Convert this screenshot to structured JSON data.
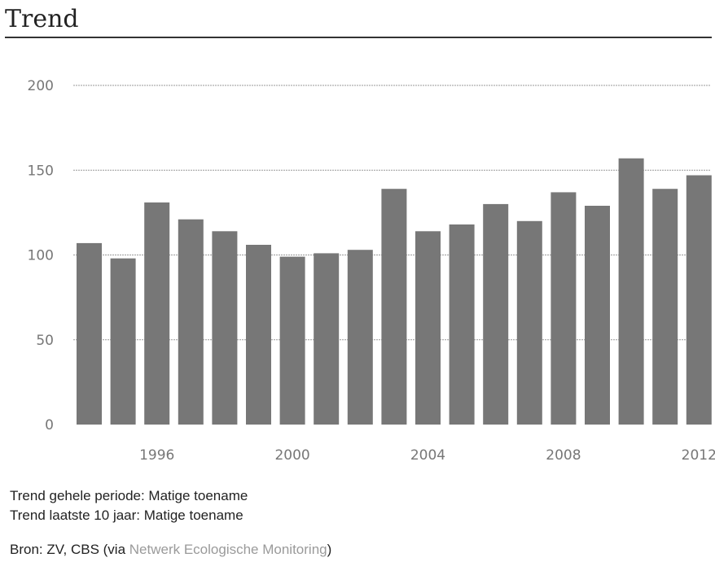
{
  "header": {
    "title": "Trend"
  },
  "notes": {
    "period": "Trend gehele periode: Matige toename",
    "last10": "Trend laatste 10 jaar: Matige toename"
  },
  "source": {
    "prefix": "Bron: ZV, CBS (via ",
    "link": "Netwerk Ecologische Monitoring",
    "suffix": ")"
  },
  "colors": {
    "bar": "#777777",
    "grid": "#999999",
    "tick_text": "#777777"
  },
  "chart_data": {
    "type": "bar",
    "categories": [
      1994,
      1995,
      1996,
      1997,
      1998,
      1999,
      2000,
      2001,
      2002,
      2003,
      2004,
      2005,
      2006,
      2007,
      2008,
      2009,
      2010,
      2011,
      2012
    ],
    "values": [
      107,
      98,
      131,
      121,
      114,
      106,
      99,
      101,
      103,
      139,
      114,
      118,
      130,
      120,
      137,
      129,
      157,
      139,
      147
    ],
    "x_tick_labels": [
      "1996",
      "2000",
      "2004",
      "2008",
      "2012"
    ],
    "y_ticks": [
      0,
      50,
      100,
      150,
      200
    ],
    "ylim": [
      0,
      200
    ],
    "grid": true,
    "title": "",
    "xlabel": "",
    "ylabel": ""
  }
}
